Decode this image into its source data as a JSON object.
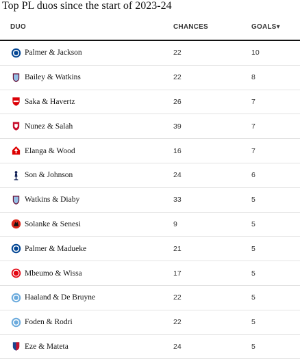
{
  "title": "Top PL duos since the start of 2023-24",
  "table": {
    "headers": {
      "duo": "DUO",
      "chances": "CHANCES",
      "goals": "GOALS"
    },
    "sort_indicator": "▾",
    "rows": [
      {
        "duo": "Palmer & Jackson",
        "chances": "22",
        "goals": "10",
        "crest": "chelsea-crest-icon",
        "color": "#034694"
      },
      {
        "duo": "Bailey & Watkins",
        "chances": "22",
        "goals": "8",
        "crest": "aston-villa-crest-icon",
        "color": "#95bfe5"
      },
      {
        "duo": "Saka & Havertz",
        "chances": "26",
        "goals": "7",
        "crest": "arsenal-crest-icon",
        "color": "#db0007"
      },
      {
        "duo": "Nunez & Salah",
        "chances": "39",
        "goals": "7",
        "crest": "liverpool-crest-icon",
        "color": "#c8102e"
      },
      {
        "duo": "Elanga & Wood",
        "chances": "16",
        "goals": "7",
        "crest": "nottingham-forest-crest-icon",
        "color": "#dd0000"
      },
      {
        "duo": "Son & Johnson",
        "chances": "24",
        "goals": "6",
        "crest": "tottenham-crest-icon",
        "color": "#132257"
      },
      {
        "duo": "Watkins & Diaby",
        "chances": "33",
        "goals": "5",
        "crest": "aston-villa-crest-icon",
        "color": "#95bfe5"
      },
      {
        "duo": "Solanke & Senesi",
        "chances": "9",
        "goals": "5",
        "crest": "bournemouth-crest-icon",
        "color": "#da291c"
      },
      {
        "duo": "Palmer & Madueke",
        "chances": "21",
        "goals": "5",
        "crest": "chelsea-crest-icon",
        "color": "#034694"
      },
      {
        "duo": "Mbeumo & Wissa",
        "chances": "17",
        "goals": "5",
        "crest": "brentford-crest-icon",
        "color": "#e30613"
      },
      {
        "duo": "Haaland & De Bruyne",
        "chances": "22",
        "goals": "5",
        "crest": "man-city-crest-icon",
        "color": "#6cabdd"
      },
      {
        "duo": "Foden & Rodri",
        "chances": "22",
        "goals": "5",
        "crest": "man-city-crest-icon",
        "color": "#6cabdd"
      },
      {
        "duo": "Eze & Mateta",
        "chances": "24",
        "goals": "5",
        "crest": "crystal-palace-crest-icon",
        "color": "#1b458f"
      }
    ]
  }
}
